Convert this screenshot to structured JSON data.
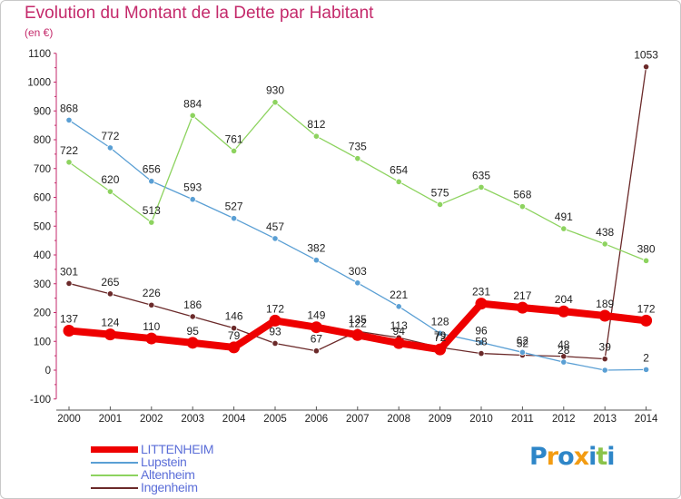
{
  "header": {
    "title": "Evolution du Montant de la Dette par Habitant",
    "unit": "(en €)"
  },
  "chart_data": {
    "type": "line",
    "x": [
      "2000",
      "2001",
      "2002",
      "2003",
      "2004",
      "2005",
      "2006",
      "2007",
      "2008",
      "2009",
      "2010",
      "2011",
      "2012",
      "2013",
      "2014"
    ],
    "ylim": [
      -100,
      1100
    ],
    "yticks": [
      "-100",
      "0",
      "100",
      "200",
      "300",
      "400",
      "500",
      "600",
      "700",
      "800",
      "900",
      "1000",
      "1100"
    ],
    "grid": false,
    "legend_position": "bottom-left",
    "series": [
      {
        "name": "LITTENHEIM",
        "color": "#ee0000",
        "values": [
          137,
          124,
          110,
          95,
          79,
          172,
          149,
          122,
          94,
          72,
          231,
          217,
          204,
          189,
          172
        ],
        "labels": [
          "137",
          "124",
          "110",
          "95",
          "79",
          "172",
          "149",
          "122",
          "94",
          "72",
          "231",
          "217",
          "204",
          "189",
          "172"
        ]
      },
      {
        "name": "Lupstein",
        "color": "#5a9fd4",
        "values": [
          868,
          772,
          656,
          593,
          527,
          457,
          382,
          303,
          221,
          128,
          96,
          62,
          28,
          0,
          2
        ],
        "labels": [
          "868",
          "772",
          "656",
          "593",
          "527",
          "457",
          "382",
          "303",
          "221",
          "128",
          "96",
          "62",
          "28",
          "",
          "2"
        ]
      },
      {
        "name": "Altenheim",
        "color": "#8dd35f",
        "values": [
          722,
          620,
          513,
          884,
          761,
          930,
          812,
          735,
          654,
          575,
          635,
          568,
          491,
          438,
          380
        ],
        "labels": [
          "722",
          "620",
          "513",
          "884",
          "761",
          "930",
          "812",
          "735",
          "654",
          "575",
          "635",
          "568",
          "491",
          "438",
          "380"
        ]
      },
      {
        "name": "Ingenheim",
        "color": "#6b2a2a",
        "values": [
          301,
          265,
          226,
          186,
          146,
          93,
          67,
          135,
          113,
          79,
          58,
          52,
          48,
          39,
          1053
        ],
        "labels": [
          "301",
          "265",
          "226",
          "186",
          "146",
          "93",
          "67",
          "135",
          "113",
          "79",
          "58",
          "52",
          "48",
          "39",
          "1053"
        ]
      }
    ]
  },
  "logo": {
    "text": "Proxiti",
    "letters": [
      {
        "ch": "P",
        "color": "#2e86c8"
      },
      {
        "ch": "r",
        "color": "#f39c12"
      },
      {
        "ch": "o",
        "color": "#2e86c8"
      },
      {
        "ch": "x",
        "color": "#f39c12"
      },
      {
        "ch": "i",
        "color": "#2e86c8"
      },
      {
        "ch": "t",
        "color": "#8bc34a"
      },
      {
        "ch": "i",
        "color": "#2e86c8"
      }
    ]
  }
}
